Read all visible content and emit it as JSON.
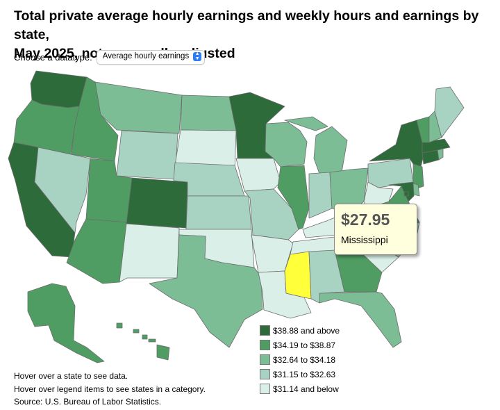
{
  "title_line1": "Total private average hourly earnings and weekly hours and earnings by state,",
  "title_line2": "May 2025, not seasonally adjusted",
  "datatype": {
    "label": "Choose a datatype:",
    "selected": "Average hourly earnings",
    "arrow_icon": "up-down-chevron-icon"
  },
  "tooltip": {
    "value": "$27.95",
    "state": "Mississippi"
  },
  "legend": [
    {
      "label": "$38.88 and above",
      "color": "#2e6b3a"
    },
    {
      "label": "$34.19 to $38.87",
      "color": "#4f9d62"
    },
    {
      "label": "$32.64 to $34.18",
      "color": "#7cbd96"
    },
    {
      "label": "$31.15 to $32.63",
      "color": "#a8d3c2"
    },
    {
      "label": "$31.14 and below",
      "color": "#d9efe8"
    }
  ],
  "highlight_color": "#ffff3a",
  "notes": [
    "Hover over a state to see data.",
    "Hover over legend items to see states in a category.",
    "Source: U.S. Bureau of Labor Statistics."
  ],
  "states": {
    "WA": 0,
    "OR": 1,
    "CA": 0,
    "NV": 3,
    "ID": 1,
    "MT": 2,
    "WY": 3,
    "UT": 1,
    "AZ": 1,
    "CO": 0,
    "NM": 4,
    "ND": 2,
    "SD": 4,
    "NE": 3,
    "KS": 3,
    "OK": 4,
    "TX": 2,
    "MN": 0,
    "IA": 4,
    "MO": 3,
    "AR": 4,
    "LA": 4,
    "WI": 2,
    "IL": 1,
    "MI": 2,
    "IN": 3,
    "OH": 2,
    "KY": 4,
    "TN": 4,
    "MS": "highlight",
    "AL": 3,
    "GA": 1,
    "FL": 2,
    "SC": 4,
    "NC": 3,
    "VA": 1,
    "WV": 4,
    "PA": 3,
    "NY": 0,
    "NJ": 1,
    "DE": 2,
    "MD": 0,
    "DC": 0,
    "CT": 0,
    "RI": 2,
    "MA": 0,
    "VT": 1,
    "NH": 2,
    "ME": 3,
    "AK": 1,
    "HI": 1
  }
}
